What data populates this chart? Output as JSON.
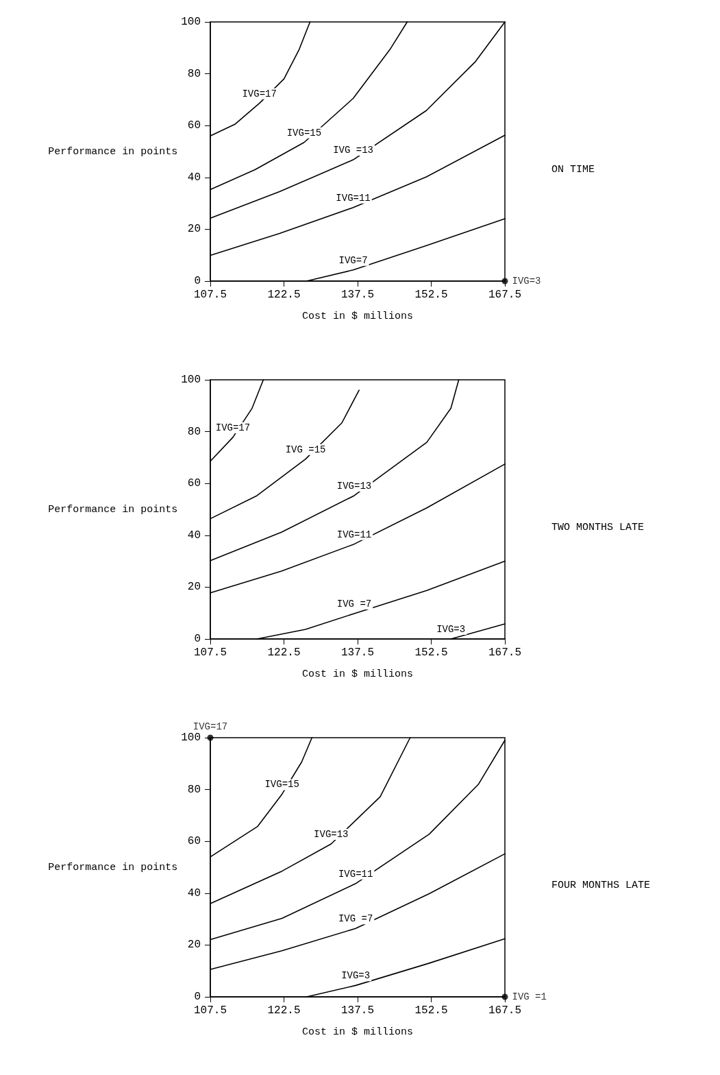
{
  "chart_data": [
    {
      "type": "line",
      "annotations": [
        "ON TIME"
      ],
      "xlabel": "Cost in $ millions",
      "ylabel": "Performance in points",
      "xlim": [
        107.5,
        167.5
      ],
      "xticks": [
        107.5,
        122.5,
        137.5,
        152.5,
        167.5
      ],
      "ylim": [
        0,
        100
      ],
      "yticks": [
        0,
        20,
        40,
        60,
        80,
        100
      ],
      "grid": false,
      "legend": false,
      "series": [
        {
          "name": "IVG=17",
          "color": "#000000",
          "x": [
            107.5,
            112.5,
            117.5,
            122.5,
            125.6,
            127.8
          ],
          "values": [
            56,
            60.5,
            68.6,
            78,
            89.4,
            100
          ]
        },
        {
          "name": "IVG=15",
          "color": "#000000",
          "x": [
            107.5,
            116.6,
            126.6,
            136.6,
            144.1,
            147.6
          ],
          "values": [
            35.3,
            43,
            53.5,
            70.5,
            89.4,
            100
          ]
        },
        {
          "name": "IVG =13",
          "color": "#000000",
          "x": [
            107.5,
            121.6,
            136.6,
            151.5,
            161.5,
            167.5
          ],
          "values": [
            24.3,
            34.5,
            46.8,
            65.8,
            84.7,
            100
          ]
        },
        {
          "name": "IVG=11",
          "color": "#000000",
          "x": [
            107.5,
            121.6,
            136.6,
            151.5,
            167.5
          ],
          "values": [
            9.9,
            18.4,
            28.4,
            40.2,
            56.3
          ]
        },
        {
          "name": "IVG=7",
          "color": "#000000",
          "x": [
            127.1,
            136.6,
            151.5,
            167.5
          ],
          "values": [
            0,
            4.3,
            13.7,
            24.1
          ]
        },
        {
          "name": "IVG=3",
          "color": "#000000",
          "type": "scatter",
          "marker": "circle",
          "x": [
            167.5
          ],
          "values": [
            0
          ]
        }
      ]
    },
    {
      "type": "line",
      "annotations": [
        "TWO MONTHS LATE"
      ],
      "xlabel": "Cost in $ millions",
      "ylabel": "Performance in points",
      "xlim": [
        107.5,
        167.5
      ],
      "xticks": [
        107.5,
        122.5,
        137.5,
        152.5,
        167.5
      ],
      "ylim": [
        0,
        100
      ],
      "yticks": [
        0,
        20,
        40,
        60,
        80,
        100
      ],
      "grid": false,
      "legend": false,
      "series": [
        {
          "name": "IVG=17",
          "color": "#000000",
          "x": [
            107.5,
            112.1,
            116,
            118.3
          ],
          "values": [
            68.6,
            77.8,
            89,
            100
          ]
        },
        {
          "name": "IVG =15",
          "color": "#000000",
          "x": [
            107.5,
            117,
            126.9,
            134.3,
            137.8
          ],
          "values": [
            46.4,
            55.3,
            69.4,
            83.4,
            96
          ]
        },
        {
          "name": "IVG=13",
          "color": "#000000",
          "x": [
            107.5,
            122,
            136.8,
            151.6,
            156.5,
            158.1
          ],
          "values": [
            30.2,
            41.2,
            55.3,
            75.9,
            89,
            100
          ]
        },
        {
          "name": "IVG=11",
          "color": "#000000",
          "x": [
            107.5,
            122,
            136.8,
            151.6,
            167.5
          ],
          "values": [
            17.8,
            26.2,
            36.6,
            50.6,
            67.5
          ]
        },
        {
          "name": "IVG =7",
          "color": "#000000",
          "x": [
            117,
            126.9,
            136.8,
            151.6,
            167.5
          ],
          "values": [
            0,
            3.7,
            9.8,
            18.7,
            30
          ]
        },
        {
          "name": "IVG=3",
          "color": "#000000",
          "x": [
            156.5,
            167.5
          ],
          "values": [
            0,
            5.8
          ]
        }
      ]
    },
    {
      "type": "line",
      "annotations": [
        "FOUR MONTHS LATE"
      ],
      "xlabel": "Cost in $ millions",
      "ylabel": "Performance in points",
      "xlim": [
        107.5,
        167.5
      ],
      "xticks": [
        107.5,
        122.5,
        137.5,
        152.5,
        167.5
      ],
      "ylim": [
        0,
        100
      ],
      "yticks": [
        0,
        20,
        40,
        60,
        80,
        100
      ],
      "grid": false,
      "legend": false,
      "series": [
        {
          "name": "IVG=17",
          "color": "#000000",
          "type": "scatter",
          "marker": "circle",
          "x": [
            107.5
          ],
          "values": [
            100
          ]
        },
        {
          "name": "IVG=15",
          "color": "#000000",
          "x": [
            107.5,
            117.1,
            122.1,
            126.1,
            128.2
          ],
          "values": [
            54,
            65.7,
            78.2,
            90.6,
            100
          ]
        },
        {
          "name": "IVG=13",
          "color": "#000000",
          "x": [
            107.5,
            122.1,
            132.1,
            142.1,
            148.2
          ],
          "values": [
            36,
            48.5,
            59,
            77.2,
            100
          ]
        },
        {
          "name": "IVG=11",
          "color": "#000000",
          "x": [
            107.5,
            122.1,
            137.1,
            152.1,
            162.1,
            167.5
          ],
          "values": [
            22.1,
            30.3,
            43.7,
            62.8,
            82,
            99
          ]
        },
        {
          "name": "IVG =7",
          "color": "#000000",
          "x": [
            107.5,
            122.1,
            137.1,
            152.1,
            167.5
          ],
          "values": [
            10.6,
            17.8,
            26.4,
            39.8,
            55.2
          ]
        },
        {
          "name": "IVG=3",
          "color": "#000000",
          "x": [
            127.1,
            137.1,
            152.1,
            167.5
          ],
          "values": [
            0,
            4.4,
            13,
            22.4
          ]
        },
        {
          "name": "IVG =1",
          "color": "#000000",
          "type": "scatter",
          "marker": "circle",
          "x": [
            167.5
          ],
          "values": [
            0
          ]
        }
      ]
    }
  ]
}
